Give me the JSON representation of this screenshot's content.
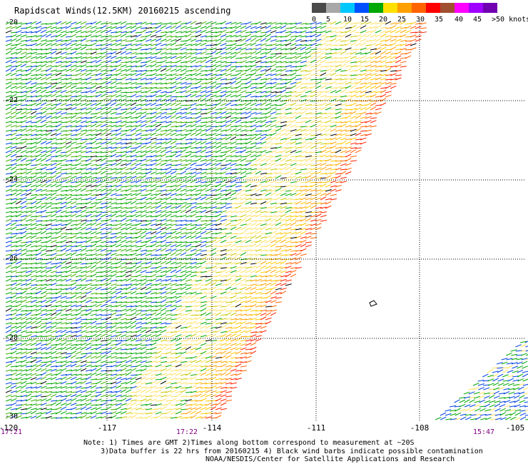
{
  "title": "Rapidscat Winds(12.5KM) 20160215 ascending",
  "scale": {
    "colors": [
      "#4a4a4a",
      "#a8a8a8",
      "#00c8ff",
      "#0050ff",
      "#00a800",
      "#ffe000",
      "#ffa000",
      "#ff6400",
      "#ff0000",
      "#a05030",
      "#ff00ff",
      "#a000ff",
      "#7000b0"
    ],
    "labels": [
      "0",
      "5",
      "10",
      "15",
      "20",
      "25",
      "30",
      "35",
      "40",
      "45",
      ">50 knots"
    ]
  },
  "lat_labels": [
    "-20",
    "-22",
    "-24",
    "-26",
    "-28",
    "-30"
  ],
  "lon_labels": [
    "-120",
    "-117",
    "-114",
    "-111",
    "-108",
    "-105"
  ],
  "time_labels": [
    "17:21",
    "17:22",
    "15:47"
  ],
  "notes": [
    "Note: 1) Times are GMT 2)Times along bottom correspond to measurement at ~20S",
    "3)Data buffer is 22 hrs from 20160215 4) Black wind barbs indicate possible contamination",
    "NOAA/NESDIS/Center for Satellite Applications and Research"
  ]
}
